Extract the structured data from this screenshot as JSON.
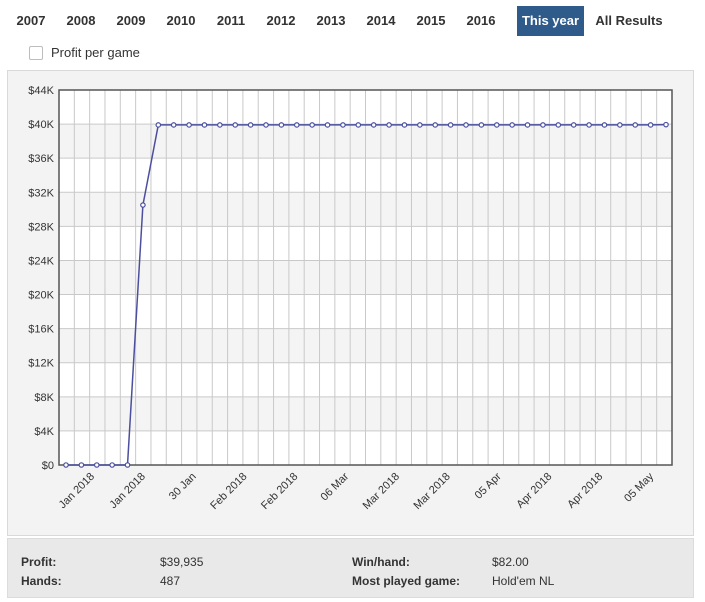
{
  "tabs": [
    {
      "label": "2007",
      "active": false
    },
    {
      "label": "2008",
      "active": false
    },
    {
      "label": "2009",
      "active": false
    },
    {
      "label": "2010",
      "active": false
    },
    {
      "label": "2011",
      "active": false
    },
    {
      "label": "2012",
      "active": false
    },
    {
      "label": "2013",
      "active": false
    },
    {
      "label": "2014",
      "active": false
    },
    {
      "label": "2015",
      "active": false
    },
    {
      "label": "2016",
      "active": false
    },
    {
      "label": "This year",
      "active": true
    },
    {
      "label": "All Results",
      "active": false
    }
  ],
  "options": {
    "profit_per_game_label": "Profit per game",
    "profit_per_game_checked": false
  },
  "colors": {
    "accent": "#2f5b8b",
    "series": "#4b4f9e",
    "grid": "#c9c9c9"
  },
  "chart_data": {
    "type": "line",
    "title": "",
    "xlabel": "",
    "ylabel": "",
    "ylim": [
      0,
      44000
    ],
    "grid": true,
    "yticks": [
      "$0",
      "$4K",
      "$8K",
      "$12K",
      "$16K",
      "$20K",
      "$24K",
      "$28K",
      "$32K",
      "$36K",
      "$40K",
      "$44K"
    ],
    "yticks_values": [
      0,
      4000,
      8000,
      12000,
      16000,
      20000,
      24000,
      28000,
      32000,
      36000,
      40000,
      44000
    ],
    "xticks": [
      "Jan 2018",
      "Jan 2018",
      "30 Jan",
      "Feb 2018",
      "Feb 2018",
      "06 Mar",
      "Mar 2018",
      "Mar 2018",
      "05 Apr",
      "Apr 2018",
      "Apr 2018",
      "05 May"
    ],
    "series": [
      {
        "values": [
          0,
          0,
          0,
          0,
          0,
          30500,
          39900,
          39900,
          39900,
          39900,
          39900,
          39900,
          39900,
          39900,
          39900,
          39900,
          39900,
          39900,
          39900,
          39900,
          39900,
          39900,
          39900,
          39900,
          39900,
          39900,
          39900,
          39900,
          39900,
          39900,
          39900,
          39900,
          39900,
          39900,
          39900,
          39900,
          39900,
          39900,
          39900,
          39935
        ]
      }
    ]
  },
  "stats": {
    "profit_label": "Profit:",
    "profit_value": "$39,935",
    "hands_label": "Hands:",
    "hands_value": "487",
    "winhand_label": "Win/hand:",
    "winhand_value": "$82.00",
    "most_played_label": "Most played game:",
    "most_played_value": "Hold'em NL"
  }
}
